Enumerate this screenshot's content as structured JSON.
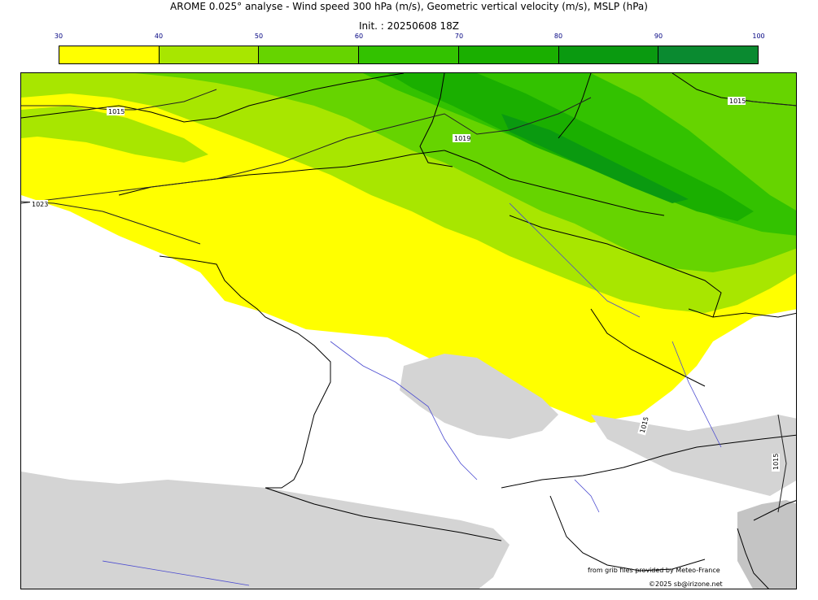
{
  "header": {
    "title": "AROME 0.025° analyse - Wind speed 300 hPa (m/s), Geometric vertical velocity (m/s), MSLP (hPa)",
    "init": "Init. : 20250608 18Z"
  },
  "colorbar": {
    "ticks": [
      "30",
      "40",
      "50",
      "60",
      "70",
      "80",
      "90",
      "100"
    ],
    "colors": [
      "#ffff00",
      "#a8e600",
      "#66d400",
      "#33c200",
      "#1aaf00",
      "#0a9a10",
      "#0a8a30",
      "#0a7a45"
    ]
  },
  "isobars": {
    "labels": [
      "1015",
      "1015",
      "1023",
      "1015",
      "1015",
      "1019"
    ]
  },
  "footer": {
    "source": "from grib files provided by Meteo-France",
    "copyright": "©2025 sb@irizone.net"
  }
}
